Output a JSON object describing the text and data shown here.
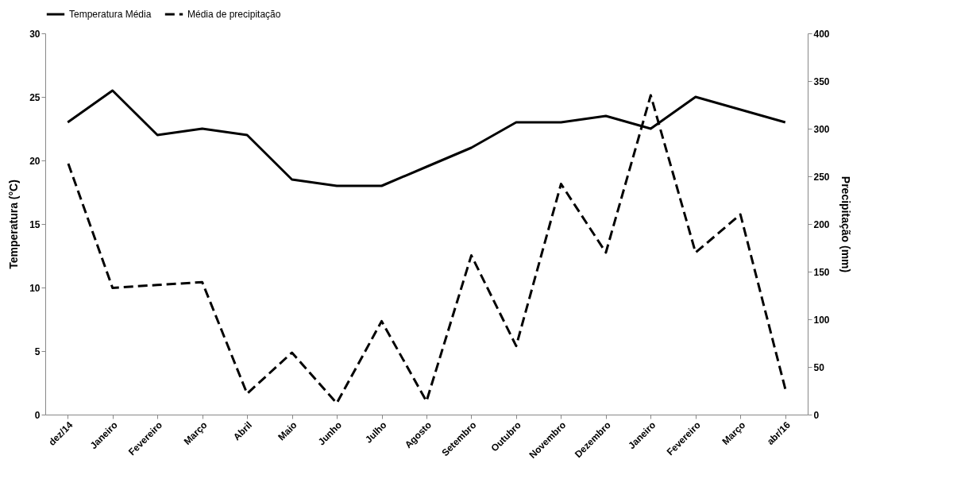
{
  "chart_data": {
    "type": "line",
    "ylabel": "Temperatura (°C)",
    "y2label": "Precipitação (mm)",
    "categories": [
      "dez/14",
      "Janeiro",
      "Fevereiro",
      "Março",
      "Abril",
      "Maio",
      "Junho",
      "Julho",
      "Agosto",
      "Setembro",
      "Outubro",
      "Novembro",
      "Dezembro",
      "Janeiro",
      "Fevereiro",
      "Março",
      "abr/16"
    ],
    "series": [
      {
        "name": "Temperatura Média",
        "color": "#000000",
        "line_style": "solid",
        "values": [
          23,
          25.5,
          22,
          22.5,
          22,
          18.5,
          18,
          18,
          19.5,
          21,
          23,
          23,
          23.5,
          22.5,
          25,
          24,
          23
        ]
      },
      {
        "name": "Média de precipitação",
        "color": "#000000",
        "line_style": "dashed",
        "axis": "y2",
        "values": [
          265,
          133,
          136,
          139,
          22,
          65,
          12,
          98,
          14,
          167,
          72,
          242,
          170,
          335,
          170,
          210,
          27
        ]
      }
    ],
    "ylim": [
      0,
      30
    ],
    "yticks": [
      0,
      5,
      10,
      15,
      20,
      25,
      30
    ],
    "y2lim": [
      0,
      400
    ],
    "y2ticks": [
      0,
      50,
      100,
      150,
      200,
      250,
      300,
      350,
      400
    ],
    "grid": false,
    "legend": "top",
    "marker": "none"
  }
}
